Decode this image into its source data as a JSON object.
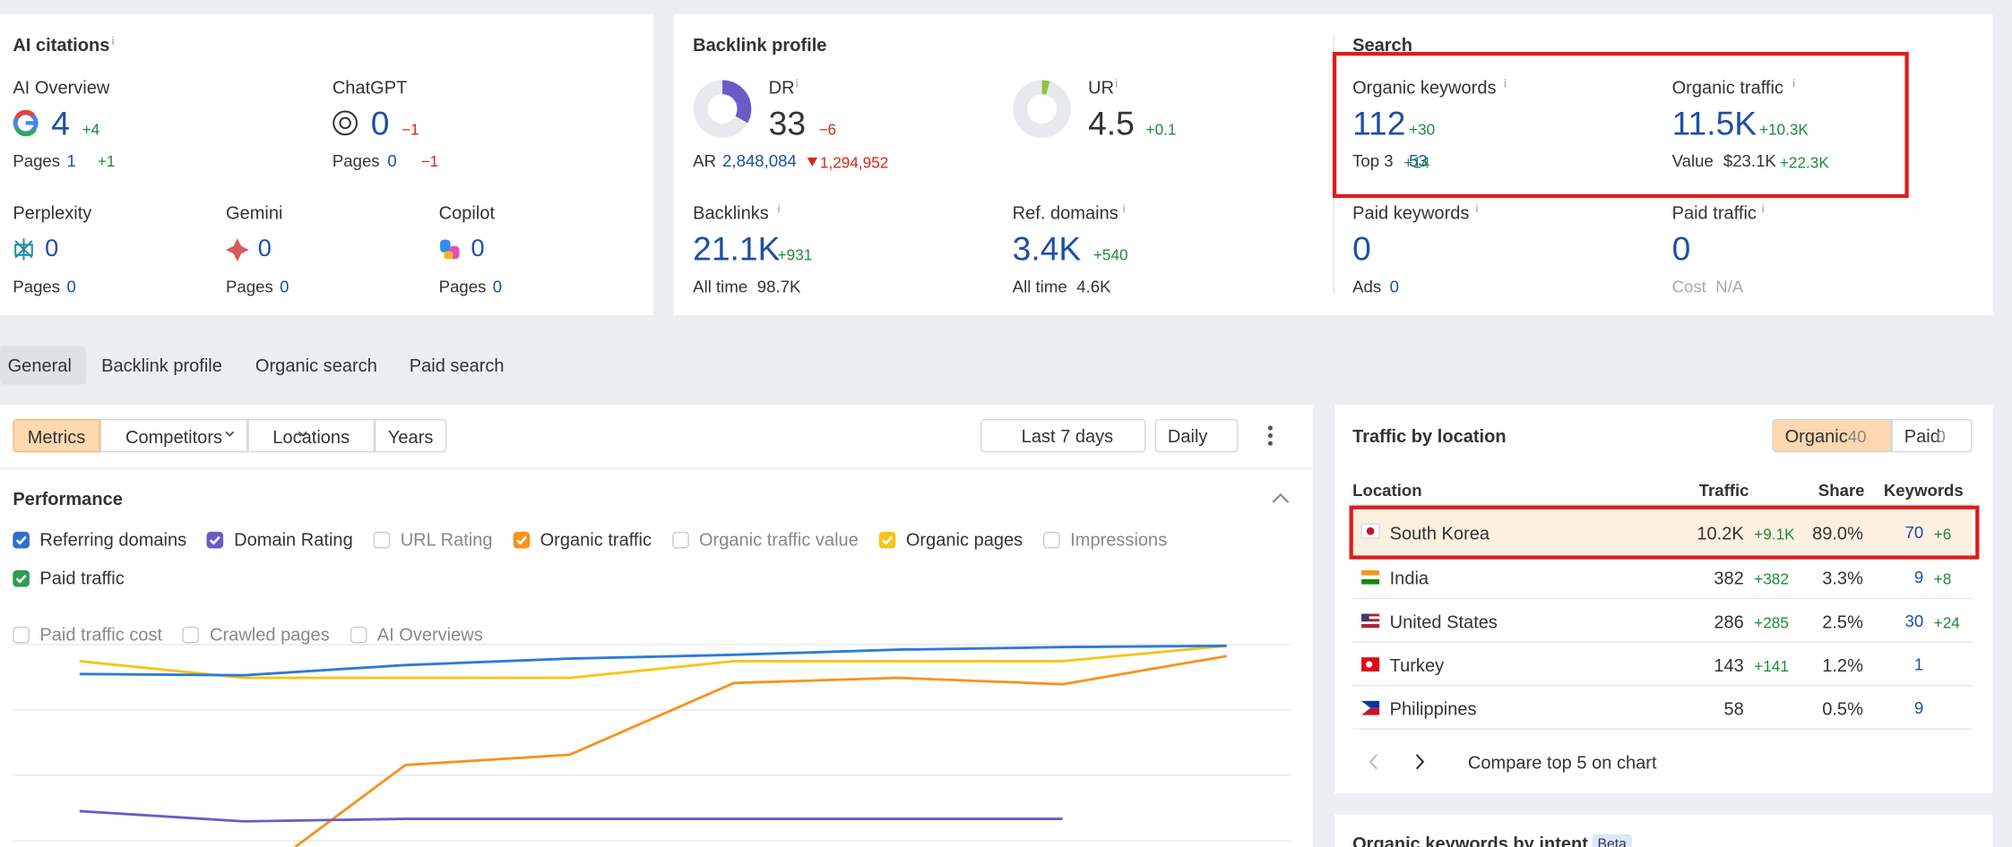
{
  "info": "i",
  "ai_citations": {
    "title": "AI citations",
    "ai_overview": {
      "label": "AI Overview",
      "value": "4",
      "change": "+4",
      "pages_label": "Pages",
      "pages": "1",
      "pages_change": "+1"
    },
    "chatgpt": {
      "label": "ChatGPT",
      "value": "0",
      "change": "−1",
      "pages_label": "Pages",
      "pages": "0",
      "pages_change": "−1"
    },
    "perplexity": {
      "label": "Perplexity",
      "value": "0",
      "pages_label": "Pages",
      "pages": "0"
    },
    "gemini": {
      "label": "Gemini",
      "value": "0",
      "pages_label": "Pages",
      "pages": "0"
    },
    "copilot": {
      "label": "Copilot",
      "value": "0",
      "pages_label": "Pages",
      "pages": "0"
    }
  },
  "backlink_profile": {
    "title": "Backlink profile",
    "dr": {
      "label": "DR",
      "value": "33",
      "change": "−6",
      "color": "#6b5bc6"
    },
    "ar": {
      "label": "AR",
      "value": "2,848,084",
      "change": "1,294,952"
    },
    "ur": {
      "label": "UR",
      "value": "4.5",
      "change": "+0.1",
      "color": "#8cc63f"
    },
    "backlinks": {
      "label": "Backlinks",
      "value": "21.1K",
      "change": "+931",
      "sub_label": "All time",
      "sub_value": "98.7K"
    },
    "ref_domains": {
      "label": "Ref. domains",
      "value": "3.4K",
      "change": "+540",
      "sub_label": "All time",
      "sub_value": "4.6K"
    }
  },
  "search": {
    "title": "Search",
    "organic_keywords": {
      "label": "Organic keywords",
      "value": "112",
      "change": "+30",
      "sub_label": "Top 3",
      "sub_value": "53",
      "sub_change": "+14"
    },
    "organic_traffic": {
      "label": "Organic traffic",
      "value": "11.5K",
      "change": "+10.3K",
      "sub_label": "Value",
      "sub_value": "$23.1K",
      "sub_change": "+22.3K"
    },
    "paid_keywords": {
      "label": "Paid keywords",
      "value": "0",
      "sub_label": "Ads",
      "sub_value": "0"
    },
    "paid_traffic": {
      "label": "Paid traffic",
      "value": "0",
      "sub_label": "Cost",
      "sub_value": "N/A"
    }
  },
  "tabs": [
    "General",
    "Backlink profile",
    "Organic search",
    "Paid search"
  ],
  "toolbar": {
    "buttons": [
      "Metrics",
      "Competitors",
      "Locations",
      "Years"
    ],
    "date_range": "Last 7 days",
    "interval": "Daily"
  },
  "performance": {
    "title": "Performance",
    "checkboxes": [
      {
        "label": "Referring domains",
        "checked": true,
        "color": "#2f6fd0"
      },
      {
        "label": "Domain Rating",
        "checked": true,
        "color": "#6b5bc6"
      },
      {
        "label": "URL Rating",
        "checked": false
      },
      {
        "label": "Organic traffic",
        "checked": true,
        "color": "#f7931e"
      },
      {
        "label": "Organic traffic value",
        "checked": false
      },
      {
        "label": "Organic pages",
        "checked": true,
        "color": "#f5c518"
      },
      {
        "label": "Impressions",
        "checked": false
      },
      {
        "label": "Paid traffic",
        "checked": true,
        "color": "#2e9b57"
      },
      {
        "label": "Paid traffic cost",
        "checked": false
      },
      {
        "label": "Crawled pages",
        "checked": false
      },
      {
        "label": "AI Overviews",
        "checked": false
      }
    ]
  },
  "traffic_by_location": {
    "title": "Traffic by location",
    "toggle": [
      {
        "label": "Organic",
        "count": "40"
      },
      {
        "label": "Paid",
        "count": "0"
      }
    ],
    "columns": [
      "Location",
      "Traffic",
      "Share",
      "Keywords"
    ],
    "rows": [
      {
        "country": "South Korea",
        "traffic": "10.2K",
        "traffic_change": "+9.1K",
        "share": "89.0%",
        "keywords": "70",
        "keywords_change": "+6"
      },
      {
        "country": "India",
        "traffic": "382",
        "traffic_change": "+382",
        "share": "3.3%",
        "keywords": "9",
        "keywords_change": "+8"
      },
      {
        "country": "United States",
        "traffic": "286",
        "traffic_change": "+285",
        "share": "2.5%",
        "keywords": "30",
        "keywords_change": "+24"
      },
      {
        "country": "Turkey",
        "traffic": "143",
        "traffic_change": "+141",
        "share": "1.2%",
        "keywords": "1"
      },
      {
        "country": "Philippines",
        "traffic": "58",
        "share": "0.5%",
        "keywords": "9"
      }
    ],
    "footer": "Compare top 5 on chart"
  },
  "intent": {
    "title": "Organic keywords by intent",
    "badge": "Beta"
  }
}
